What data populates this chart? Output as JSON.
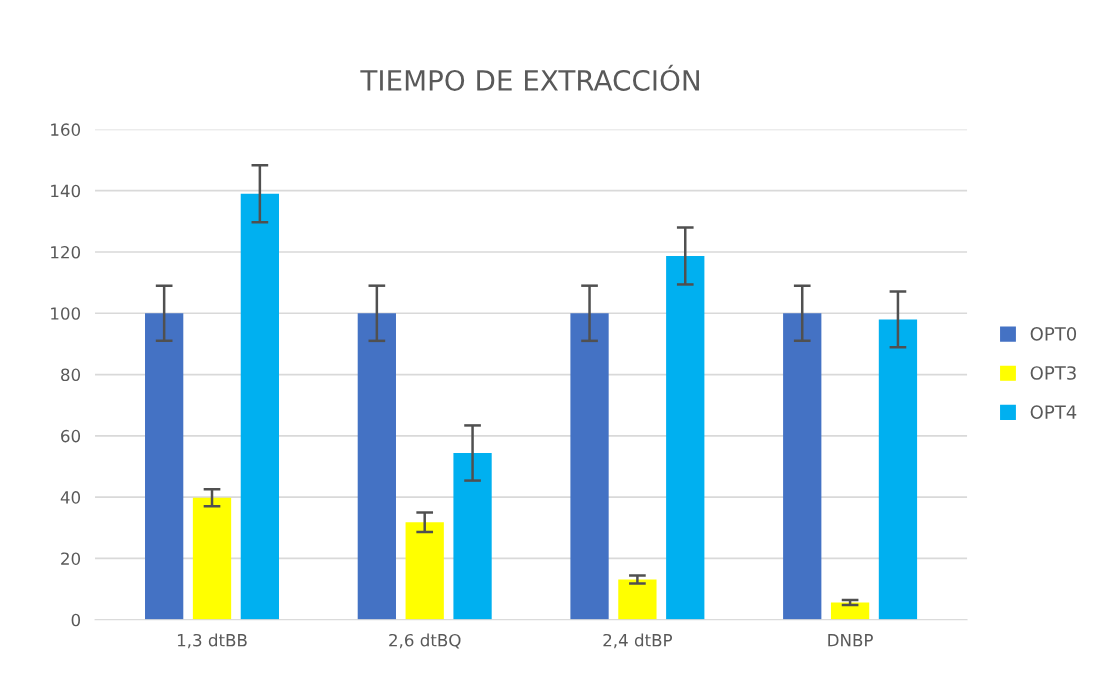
{
  "chart_data": {
    "type": "bar",
    "title": "TIEMPO DE EXTRACCIÓN",
    "categories": [
      "1,3 dtBB",
      "2,6 dtBQ",
      "2,4 dtBP",
      "DNBP"
    ],
    "series": [
      {
        "name": "OPT0",
        "color": "#4472c4",
        "values": [
          100,
          100,
          100,
          100
        ],
        "errors": [
          9,
          9,
          9,
          9
        ]
      },
      {
        "name": "OPT3",
        "color": "#ffff00",
        "values": [
          39.8,
          31.8,
          13.1,
          5.6
        ],
        "errors": [
          2.8,
          3.2,
          1.3,
          0.8
        ]
      },
      {
        "name": "OPT4",
        "color": "#00b0f0",
        "values": [
          139,
          54.4,
          118.7,
          98
        ],
        "errors": [
          9.3,
          9,
          9.3,
          9.1
        ]
      }
    ],
    "ylim": [
      0,
      160
    ],
    "yticks": [
      0,
      20,
      40,
      60,
      80,
      100,
      120,
      140,
      160
    ],
    "grid": "y",
    "legend": "right"
  }
}
